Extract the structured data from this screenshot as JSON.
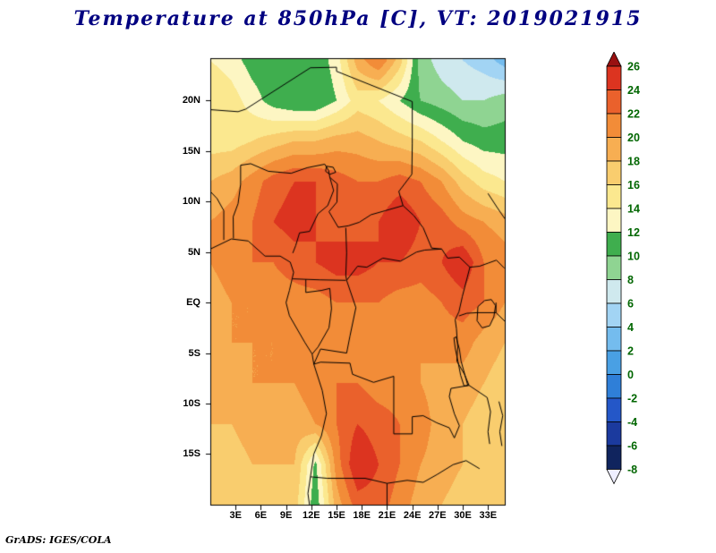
{
  "title": "Temperature at 850hPa [C], VT: 2019021915",
  "footer": "GrADS: IGES/COLA",
  "colors": {
    "title": "#000080",
    "axis_label": "#000000",
    "colorbar_label": "#006600",
    "background": "#ffffff",
    "map_outline": "#000000"
  },
  "colorbar": {
    "orientation": "vertical",
    "labels": [
      "26",
      "24",
      "22",
      "20",
      "18",
      "16",
      "14",
      "12",
      "10",
      "8",
      "6",
      "4",
      "2",
      "0",
      "-2",
      "-4",
      "-6",
      "-8"
    ]
  },
  "chart_data": {
    "type": "heatmap",
    "title": "Temperature at 850hPa [C], VT: 2019021915",
    "variable": "Temperature",
    "level": "850hPa",
    "units": "C",
    "valid_time": "2019021915",
    "lon_range": [
      0,
      35.1
    ],
    "lat_range": [
      -20.1,
      24.2
    ],
    "lat_ticks": [
      {
        "value": 20,
        "label": "20N"
      },
      {
        "value": 15,
        "label": "15N"
      },
      {
        "value": 10,
        "label": "10N"
      },
      {
        "value": 5,
        "label": "5N"
      },
      {
        "value": 0,
        "label": "EQ"
      },
      {
        "value": -5,
        "label": "5S"
      },
      {
        "value": -10,
        "label": "10S"
      },
      {
        "value": -15,
        "label": "15S"
      }
    ],
    "lon_ticks": [
      {
        "value": 3,
        "label": "3E"
      },
      {
        "value": 6,
        "label": "6E"
      },
      {
        "value": 9,
        "label": "9E"
      },
      {
        "value": 12,
        "label": "12E"
      },
      {
        "value": 15,
        "label": "15E"
      },
      {
        "value": 18,
        "label": "18E"
      },
      {
        "value": 21,
        "label": "21E"
      },
      {
        "value": 24,
        "label": "24E"
      },
      {
        "value": 27,
        "label": "27E"
      },
      {
        "value": 30,
        "label": "30E"
      },
      {
        "value": 33,
        "label": "33E"
      }
    ],
    "levels": [
      -8,
      -6,
      -4,
      -2,
      0,
      2,
      4,
      6,
      8,
      10,
      12,
      14,
      16,
      18,
      20,
      22,
      24,
      26
    ],
    "palette": [
      "#eeeeff",
      "#10245e",
      "#1b3a9e",
      "#2457c8",
      "#2f7fd8",
      "#49a0e4",
      "#74bcee",
      "#a2d4f4",
      "#cfe9ee",
      "#8fd492",
      "#3fae4e",
      "#fdf6c3",
      "#fbe88f",
      "#f9cd6e",
      "#f7ae52",
      "#f28c38",
      "#ea612c",
      "#dc3420",
      "#991111"
    ],
    "grid": {
      "lons": [
        0,
        2.5,
        5,
        7.5,
        10,
        12.5,
        15,
        17.5,
        20,
        22.5,
        25,
        27.5,
        30,
        32.5,
        35
      ],
      "lats": [
        24,
        20,
        16,
        12,
        8,
        4,
        0,
        -4,
        -8,
        -12,
        -16,
        -20
      ],
      "temps_c": [
        [
          14,
          13,
          11,
          10.5,
          10.5,
          10.5,
          13,
          19,
          22,
          17,
          9,
          7,
          6,
          5,
          3
        ],
        [
          16,
          15,
          13,
          11,
          10,
          10,
          12,
          15,
          14,
          12,
          10,
          9,
          8,
          8,
          9
        ],
        [
          15,
          15,
          16,
          17,
          18,
          18,
          19,
          19,
          18,
          17,
          16,
          14,
          12,
          11,
          11
        ],
        [
          18,
          19,
          21,
          23,
          24,
          24,
          23,
          22,
          22,
          23,
          22,
          20,
          17,
          15,
          14
        ],
        [
          20,
          21,
          22,
          24,
          25,
          24,
          23,
          23,
          24,
          26,
          24,
          23,
          21,
          20,
          19
        ],
        [
          20,
          21,
          22,
          22,
          23,
          24,
          25,
          25,
          24,
          24,
          23,
          24,
          26,
          22,
          21
        ],
        [
          19,
          20,
          20,
          21,
          21,
          21,
          22,
          22,
          22,
          21,
          21,
          22,
          23,
          22,
          20
        ],
        [
          19,
          20,
          20,
          20,
          21,
          21,
          21,
          21,
          21,
          20,
          20,
          21,
          21,
          19,
          18
        ],
        [
          18,
          19,
          20,
          20,
          20,
          21,
          22,
          22,
          21,
          21,
          20,
          19,
          19,
          18,
          17
        ],
        [
          18,
          18,
          19,
          19,
          19,
          20,
          22,
          24,
          23,
          22,
          21,
          19,
          18,
          17,
          17
        ],
        [
          17,
          17,
          18,
          18,
          18,
          11.5,
          21,
          26,
          24,
          22,
          20,
          19,
          18,
          18,
          17
        ],
        [
          16,
          16,
          17,
          17,
          17,
          10.5,
          19,
          23,
          23,
          21,
          19,
          18,
          17,
          17,
          16
        ]
      ]
    },
    "borders": [
      [
        [
          0,
          5.3
        ],
        [
          2.5,
          6.3
        ],
        [
          4.5,
          6.1
        ],
        [
          6.5,
          4.6
        ],
        [
          8.3,
          4.6
        ],
        [
          9.5,
          4.0
        ],
        [
          9.9,
          3.0
        ],
        [
          9.4,
          1.2
        ],
        [
          9.0,
          0.0
        ],
        [
          9.4,
          -1.3
        ],
        [
          11.2,
          -3.9
        ],
        [
          12.1,
          -5.1
        ],
        [
          12.3,
          -6.1
        ],
        [
          13.3,
          -8.7
        ],
        [
          13.8,
          -11.0
        ],
        [
          13.2,
          -13.2
        ],
        [
          12.3,
          -15.0
        ],
        [
          11.9,
          -17.25
        ],
        [
          11.6,
          -18.9
        ],
        [
          11.8,
          -20.1
        ]
      ],
      [
        [
          0,
          19.1
        ],
        [
          3.3,
          18.9
        ],
        [
          4.2,
          19.15
        ],
        [
          11.9,
          23.25
        ],
        [
          15.0,
          23.3
        ],
        [
          15.0,
          22.9
        ],
        [
          24.0,
          19.9
        ],
        [
          24.0,
          15.7
        ],
        [
          23.95,
          12.7
        ],
        [
          22.4,
          11.0
        ],
        [
          22.9,
          9.6
        ],
        [
          24.2,
          8.6
        ],
        [
          25.3,
          7.4
        ],
        [
          26.3,
          5.4
        ],
        [
          27.5,
          5.3
        ],
        [
          28.2,
          4.4
        ],
        [
          29.6,
          4.5
        ],
        [
          30.85,
          3.5
        ]
      ],
      [
        [
          3.6,
          13.6
        ],
        [
          4.8,
          13.75
        ],
        [
          6.9,
          13.0
        ],
        [
          9.6,
          12.8
        ],
        [
          11.5,
          13.35
        ],
        [
          13.6,
          13.7
        ],
        [
          14.06,
          13.08
        ],
        [
          14.2,
          12.4
        ]
      ],
      [
        [
          2.75,
          6.35
        ],
        [
          2.72,
          8.5
        ],
        [
          3.3,
          9.8
        ],
        [
          3.6,
          11.7
        ],
        [
          3.6,
          13.6
        ]
      ],
      [
        [
          1.6,
          6.2
        ],
        [
          1.6,
          9.1
        ],
        [
          0.8,
          10.3
        ],
        [
          0.0,
          11.0
        ]
      ],
      [
        [
          14.2,
          12.4
        ],
        [
          14.65,
          11.1
        ],
        [
          13.95,
          9.6
        ],
        [
          12.8,
          8.8
        ],
        [
          11.8,
          7.05
        ],
        [
          10.6,
          6.9
        ],
        [
          10.15,
          5.65
        ],
        [
          9.8,
          4.9
        ]
      ],
      [
        [
          14.2,
          12.4
        ],
        [
          15.1,
          11.75
        ],
        [
          15.05,
          9.95
        ],
        [
          14.1,
          9.0
        ],
        [
          15.2,
          7.45
        ],
        [
          16.4,
          7.6
        ],
        [
          17.7,
          7.95
        ],
        [
          19.1,
          8.7
        ],
        [
          20.8,
          9.1
        ],
        [
          22.9,
          9.6
        ]
      ],
      [
        [
          16.1,
          7.4
        ],
        [
          16.2,
          4.9
        ],
        [
          16.1,
          2.7
        ],
        [
          16.2,
          2.2
        ],
        [
          17.5,
          3.6
        ],
        [
          18.6,
          3.5
        ],
        [
          20.5,
          4.4
        ],
        [
          22.6,
          4.1
        ],
        [
          24.5,
          5.0
        ],
        [
          25.5,
          5.2
        ],
        [
          27.5,
          5.3
        ]
      ],
      [
        [
          11.35,
          2.3
        ],
        [
          13.0,
          2.25
        ],
        [
          16.1,
          2.2
        ]
      ],
      [
        [
          9.8,
          2.35
        ],
        [
          11.35,
          2.3
        ],
        [
          11.35,
          1.0
        ],
        [
          13.2,
          1.2
        ],
        [
          14.2,
          1.4
        ],
        [
          14.4,
          -0.6
        ],
        [
          14.1,
          -2.5
        ],
        [
          12.8,
          -4.4
        ],
        [
          12.1,
          -5.1
        ]
      ],
      [
        [
          16.2,
          2.2
        ],
        [
          17.3,
          -0.5
        ],
        [
          16.6,
          -3.3
        ],
        [
          16.2,
          -5.0
        ],
        [
          13.1,
          -4.6
        ],
        [
          12.3,
          -6.1
        ]
      ],
      [
        [
          12.3,
          -6.1
        ],
        [
          13.1,
          -5.9
        ],
        [
          16.6,
          -6.0
        ],
        [
          16.9,
          -7.1
        ],
        [
          19.4,
          -7.9
        ],
        [
          21.8,
          -7.3
        ],
        [
          21.8,
          -13.0
        ],
        [
          24.0,
          -13.0
        ],
        [
          24.0,
          -11.3
        ],
        [
          25.3,
          -11.2
        ],
        [
          26.9,
          -11.9
        ],
        [
          28.4,
          -12.4
        ],
        [
          29.0,
          -13.4
        ],
        [
          29.6,
          -12.2
        ],
        [
          29.0,
          -11.0
        ],
        [
          28.4,
          -9.3
        ],
        [
          28.6,
          -8.5
        ],
        [
          30.75,
          -8.2
        ]
      ],
      [
        [
          11.9,
          -17.25
        ],
        [
          13.9,
          -17.4
        ],
        [
          18.4,
          -17.4
        ],
        [
          21.0,
          -17.9
        ],
        [
          23.4,
          -17.6
        ],
        [
          25.3,
          -17.8
        ],
        [
          27.0,
          -17.0
        ],
        [
          28.85,
          -16.05
        ],
        [
          30.4,
          -15.65
        ],
        [
          32.0,
          -16.45
        ]
      ],
      [
        [
          21.0,
          -17.9
        ],
        [
          21.0,
          -20.1
        ]
      ],
      [
        [
          30.85,
          3.5
        ],
        [
          29.95,
          0.6
        ],
        [
          29.55,
          -0.9
        ],
        [
          29.1,
          -1.7
        ],
        [
          29.25,
          -2.6
        ],
        [
          29.4,
          -4.4
        ],
        [
          29.3,
          -5.8
        ],
        [
          30.2,
          -7.1
        ],
        [
          30.75,
          -8.2
        ]
      ],
      [
        [
          33.95,
          0.0
        ],
        [
          33.95,
          -1.0
        ],
        [
          31.7,
          -1.0
        ],
        [
          30.47,
          -1.06
        ],
        [
          29.55,
          -1.32
        ]
      ],
      [
        [
          30.85,
          3.5
        ],
        [
          32.0,
          3.6
        ],
        [
          33.0,
          3.9
        ],
        [
          34.0,
          4.2
        ],
        [
          34.95,
          3.4
        ]
      ],
      [
        [
          33.95,
          -1.0
        ],
        [
          35.0,
          -1.85
        ]
      ],
      [
        [
          33.0,
          10.8
        ],
        [
          34.1,
          9.4
        ],
        [
          35.0,
          8.3
        ]
      ],
      [
        [
          30.75,
          -8.2
        ],
        [
          32.9,
          -9.4
        ],
        [
          33.3,
          -10.8
        ],
        [
          33.0,
          -12.8
        ],
        [
          33.2,
          -14.0
        ]
      ]
    ],
    "lakes": [
      [
        [
          31.8,
          -0.4
        ],
        [
          32.6,
          0.2
        ],
        [
          33.4,
          0.3
        ],
        [
          33.9,
          -0.3
        ],
        [
          33.7,
          -1.4
        ],
        [
          33.2,
          -2.3
        ],
        [
          32.3,
          -2.5
        ],
        [
          31.7,
          -1.8
        ],
        [
          31.8,
          -0.4
        ]
      ],
      [
        [
          29.2,
          -3.4
        ],
        [
          29.6,
          -4.6
        ],
        [
          29.8,
          -5.8
        ],
        [
          30.2,
          -7.0
        ],
        [
          30.6,
          -8.2
        ],
        [
          30.15,
          -8.25
        ],
        [
          29.75,
          -7.2
        ],
        [
          29.45,
          -5.9
        ],
        [
          29.1,
          -4.5
        ],
        [
          28.95,
          -3.5
        ],
        [
          29.2,
          -3.4
        ]
      ],
      [
        [
          34.3,
          -9.8
        ],
        [
          34.75,
          -11.2
        ],
        [
          34.4,
          -12.8
        ],
        [
          34.65,
          -14.2
        ]
      ],
      [
        [
          13.8,
          13.5
        ],
        [
          14.6,
          13.4
        ],
        [
          14.9,
          12.9
        ],
        [
          14.2,
          12.7
        ],
        [
          13.7,
          13.0
        ],
        [
          13.8,
          13.5
        ]
      ]
    ]
  }
}
